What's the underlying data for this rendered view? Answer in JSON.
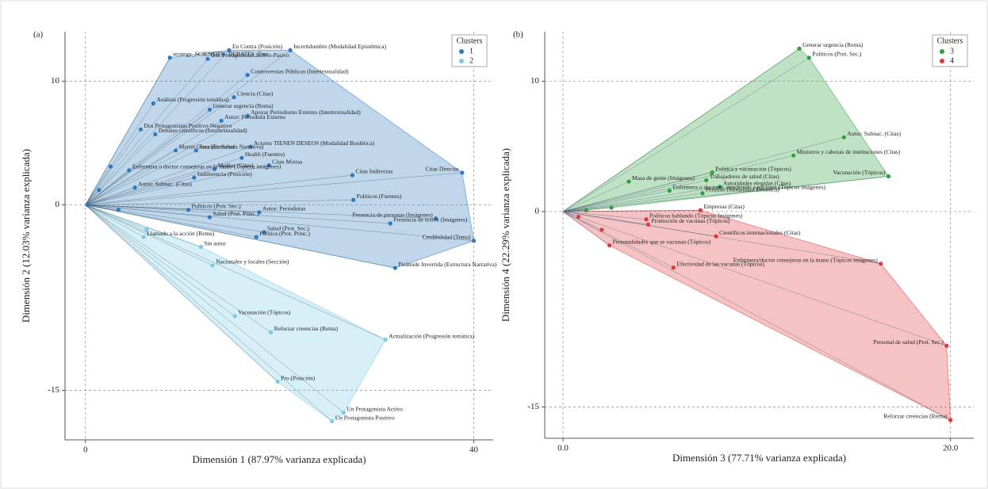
{
  "chart_data": [
    {
      "type": "scatter",
      "panel_label": "(a)",
      "x_label": "Dimensión 1 (87.97% varianza explicada)",
      "y_label": "Dimensión 2 (12.03% varianza explicada)",
      "xlim": [
        -2.1,
        42
      ],
      "ylim": [
        -19,
        14
      ],
      "xticks": [
        0,
        40
      ],
      "yticks": [
        -15,
        0,
        10
      ],
      "grid": true,
      "legend_title": "Clusters",
      "legend": "upper right",
      "series": [
        {
          "name": "1",
          "color": "#2f79bd",
          "labels": [
            "En Contra (Posición)",
            "Incertidumbre (Modalidad Epistémica)",
            "Dos Protagonistas Activo-Pasivo",
            "strategy_SCIENTIFIC DEBATES_True",
            "Controversias Públicas (Intertextualidad)",
            "Análisis (Progresión temática)",
            "Ciencia (Citas)",
            "Generar urgencia (Rema)",
            "Apoyar Periodismo Externo (Intertextualidad)",
            "Dos Protagonistas Positivo-Negativo",
            "Debates científicos (Intertextualidad)",
            "Autor: Periodista Externo",
            "Actores TIENEN DESEOS (Modalidad Boulética)",
            "Martin Glass (Estructura Narrativa)",
            "Sección: Salud",
            "Health (Fuentes)",
            "Medios (Citas)",
            "Citas Mixtas",
            "Citas Indirectas",
            "Citas Directas",
            "Indiferencia (Posición)",
            "Enfermera o doctor consejeras en la mano (Tópicos imágenes)",
            "Autor: Subnac. (Citas)",
            "Políticos (Fuentes)",
            "Políticos (Prot. Sec.)",
            "Salud (Prot. Princ.)",
            "Autor: Periodistas",
            "Presencia de personas (Imágenes)",
            "Presencia de textos (Imágenes)",
            "Salud (Prot. Sec.)",
            "Política (Prot. Princ.)",
            "Credibilidad (Tema)",
            "Pirámide Invertida (Estructura Narrativa)",
            null,
            null,
            null,
            null
          ],
          "x": [
            14.8,
            21.1,
            12.6,
            8.7,
            16.7,
            7.0,
            15.3,
            12.8,
            16.7,
            5.7,
            7.2,
            14.0,
            17.0,
            9.3,
            11.4,
            16.1,
            13.3,
            18.9,
            27.5,
            38.8,
            11.2,
            4.5,
            5.1,
            27.6,
            10.6,
            12.8,
            17.9,
            36.1,
            31.4,
            18.4,
            17.6,
            40.0,
            31.9,
            0.2,
            1.4,
            2.6,
            3.4
          ],
          "values": [
            12.5,
            12.5,
            11.8,
            11.9,
            10.5,
            8.2,
            8.7,
            7.7,
            7.2,
            6.1,
            5.7,
            6.8,
            4.7,
            4.4,
            4.4,
            3.8,
            2.9,
            3.2,
            2.4,
            2.6,
            2.2,
            2.8,
            1.4,
            0.4,
            -0.4,
            -1.0,
            -0.6,
            -1.1,
            -1.5,
            -2.2,
            -2.6,
            -2.9,
            -5.1,
            0.0,
            1.2,
            3.1,
            -0.4
          ]
        },
        {
          "name": "2",
          "color": "#7cc9e4",
          "labels": [
            "Llamado a la acción (Rema)",
            "Sin autor",
            "Nacionales y locales (Sección)",
            "Vacunación (Tópicos)",
            "Reforzar creencias (Rema)",
            "Actualización (Progresión temática)",
            "Pro (Posición)",
            "Un Protagonista Activo",
            "Un Protagonista Positivo",
            null
          ],
          "x": [
            6.0,
            11.9,
            13.1,
            15.4,
            19.1,
            30.9,
            19.8,
            26.6,
            25.4,
            6.3
          ],
          "values": [
            -2.6,
            -3.4,
            -4.9,
            -9.0,
            -10.3,
            -10.9,
            -14.3,
            -16.8,
            -17.5,
            -2.0
          ]
        }
      ]
    },
    {
      "type": "scatter",
      "panel_label": "(b)",
      "x_label": "Dimensión 3 (77.71% varianza explicada)",
      "y_label": "Dimensión 4 (22.29% varianza explicada)",
      "xlim": [
        -0.94,
        21.2
      ],
      "ylim": [
        -17.4,
        13.8
      ],
      "xticks": [
        {
          "value": 0,
          "label": "0.0"
        },
        {
          "value": 20,
          "label": "20.0"
        }
      ],
      "yticks": [
        -15,
        0,
        10
      ],
      "grid": true,
      "legend_title": "Clusters",
      "legend": "upper right",
      "series": [
        {
          "name": "3",
          "color": "#2e9e3a",
          "labels": [
            "Generar urgencia (Rema)",
            "Políticos (Prot. Sec.)",
            "Autor: Subnac. (Citas)",
            "Ministros y cabezas de instituciones (Citas)",
            "Vacunación (Tópicos)",
            "Política y vacunación (Tópicos)",
            "Trabajadores de salud (Citas)",
            "Autoridades elegidas (Citas)",
            "Enfermera o doctores atendiendo a paciente (Tópicos imágenes)",
            "Masa de gente (Imágenes)",
            "Permiso (Modalidad Deóntica)",
            null,
            null
          ],
          "x": [
            12.2,
            12.7,
            14.5,
            11.9,
            16.8,
            7.7,
            7.4,
            8.1,
            5.5,
            3.4,
            7.2,
            1.2,
            2.5
          ],
          "values": [
            12.5,
            11.8,
            5.7,
            4.3,
            2.7,
            3.0,
            2.4,
            1.9,
            1.6,
            2.3,
            1.4,
            0.1,
            0.3
          ]
        },
        {
          "name": "4",
          "color": "#e0383a",
          "labels": [
            "Empresas (Citas)",
            "Políticos hablando (Tópicos Imágenes)",
            "Promoción de vacunas (Tópicos)",
            "Científicos internacionales (Citas)",
            "Personalidades que se vacunan (Tópicos)",
            "Efectividad de las vacunas (Tópicos)",
            "Enfermera/doctor consejeras en la mano (Tópicos imágenes)",
            "Personal de salud (Prot. Sec.)",
            "Reforzar creencias (Rema)",
            null,
            null
          ],
          "x": [
            7.1,
            4.3,
            4.4,
            7.9,
            2.4,
            5.7,
            16.4,
            19.8,
            20.0,
            0.8,
            2.0
          ],
          "values": [
            0.1,
            -0.6,
            -1.0,
            -1.9,
            -2.6,
            -4.3,
            -4.0,
            -10.3,
            -16.0,
            -0.4,
            -1.4
          ]
        }
      ]
    }
  ]
}
